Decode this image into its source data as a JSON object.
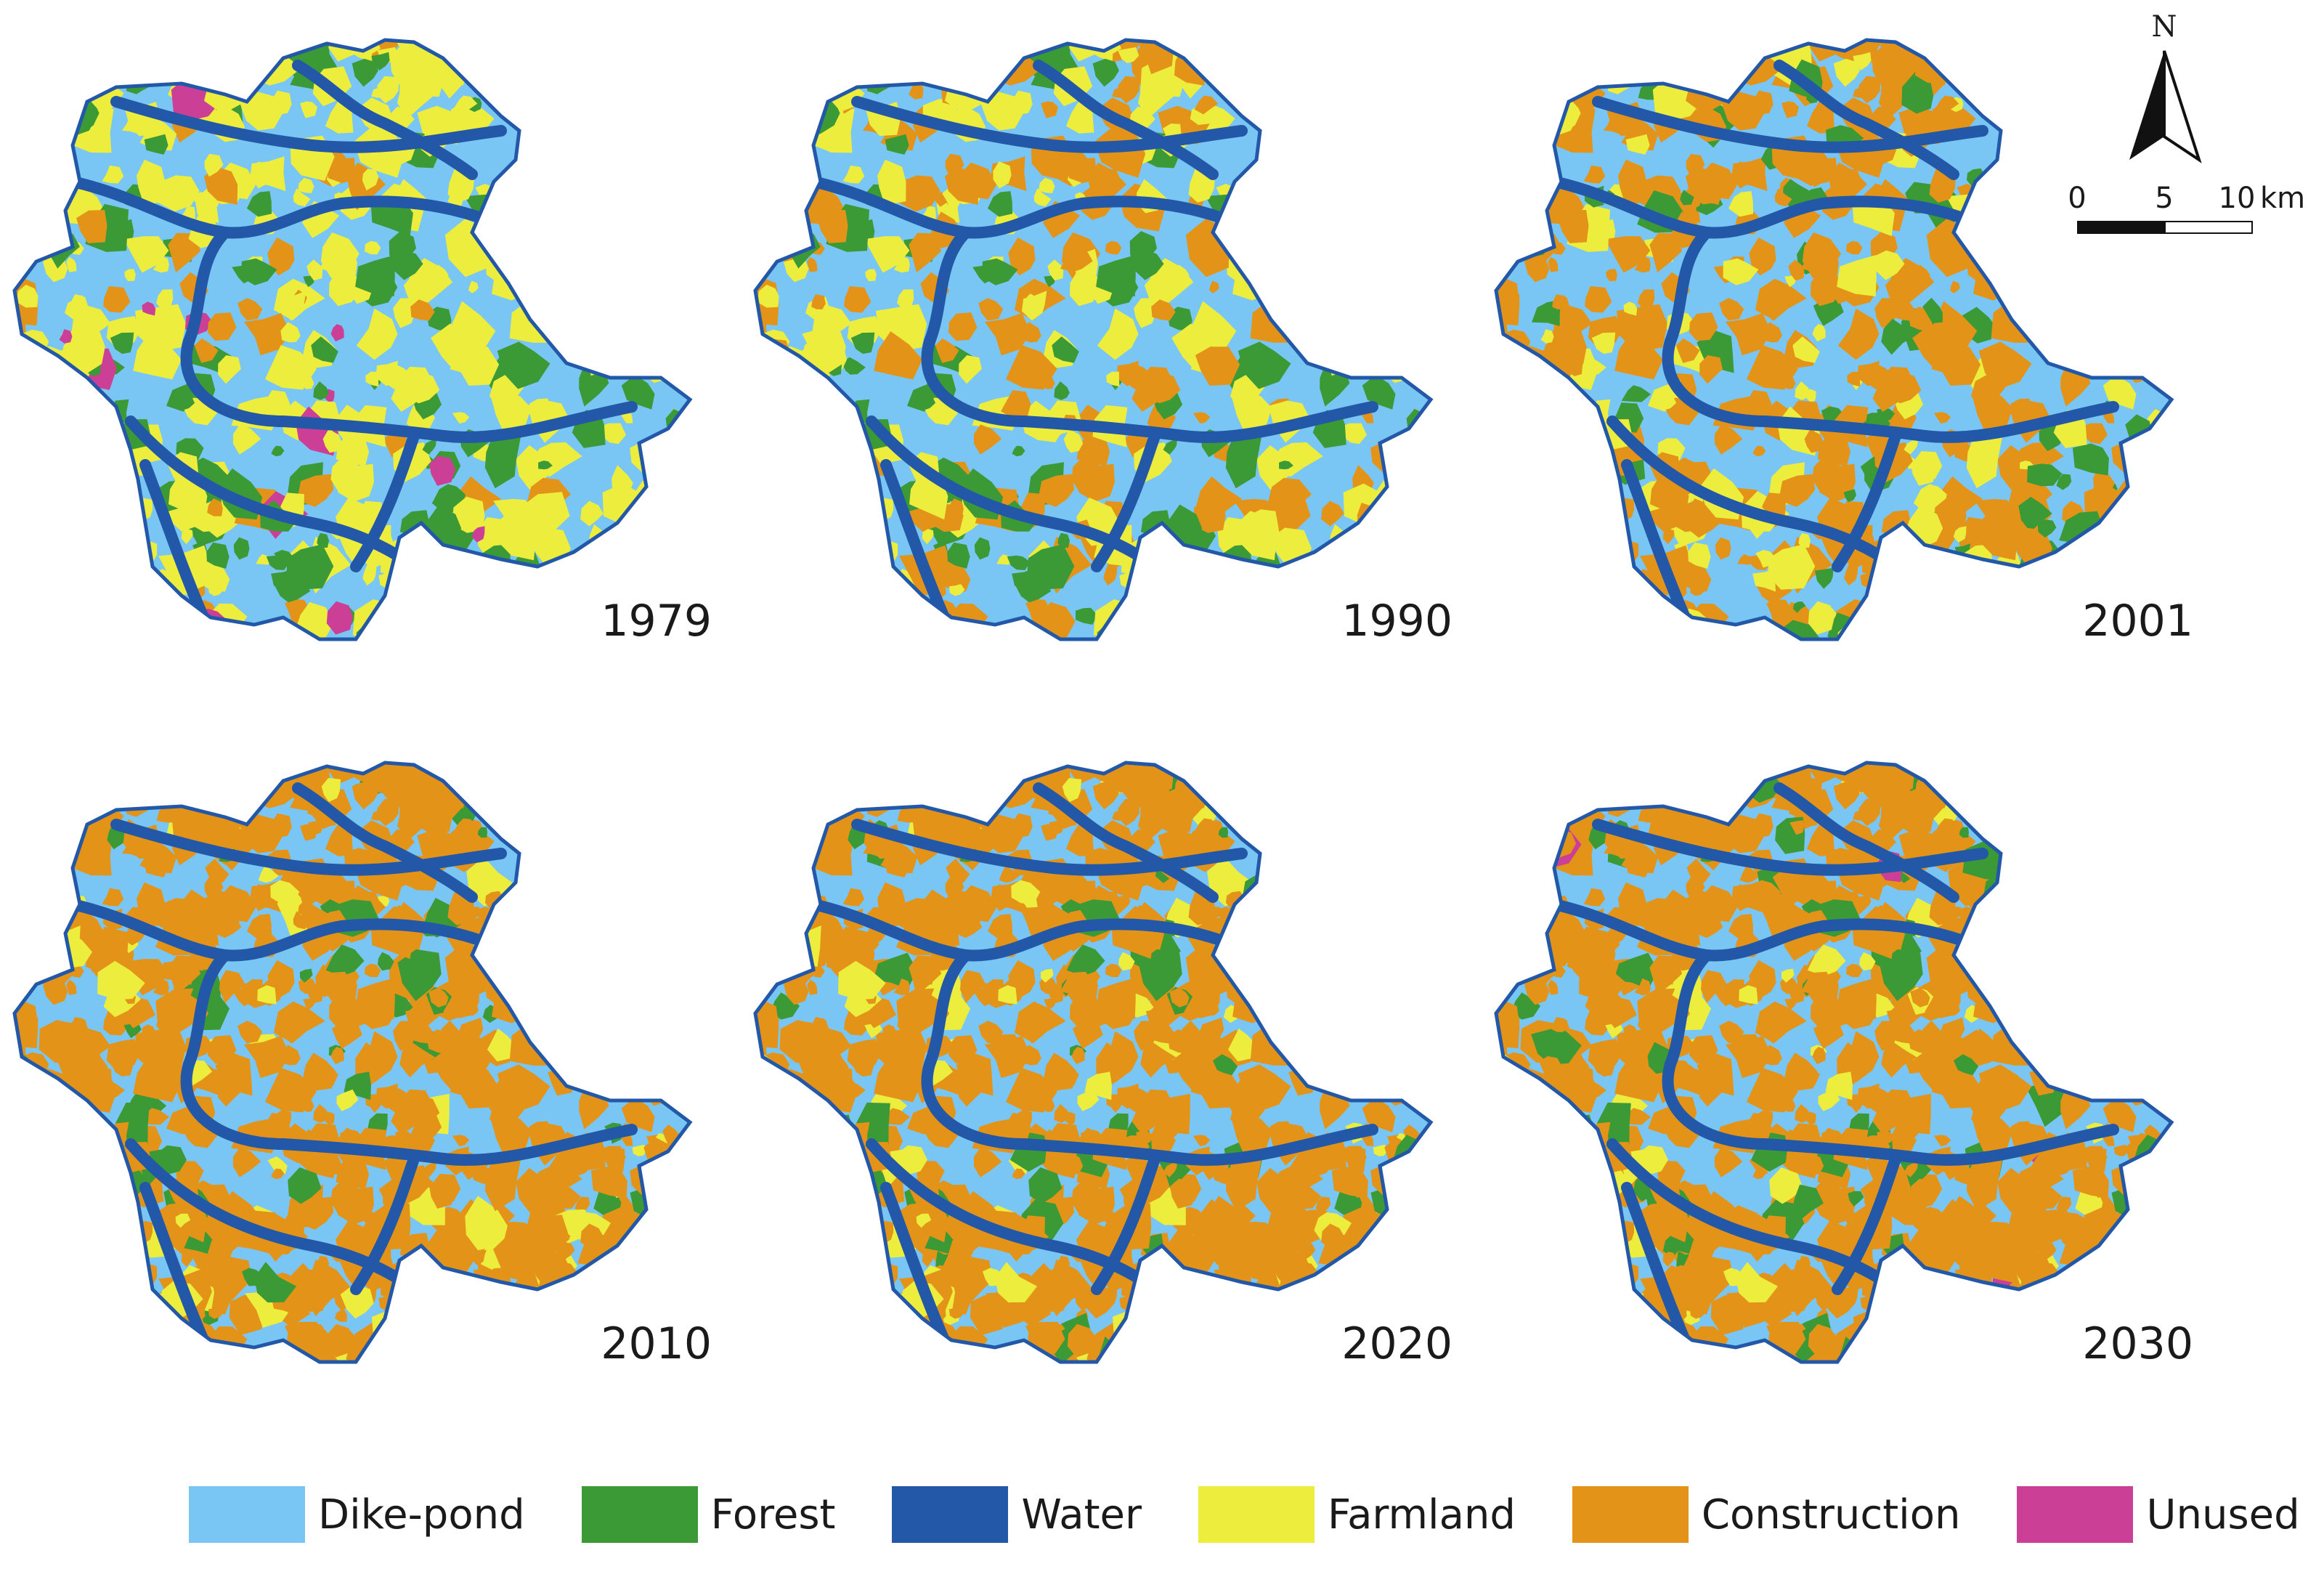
{
  "panels": [
    {
      "year": "1979",
      "composition": {
        "Dike-pond": 0.52,
        "Forest": 0.1,
        "Water": 0.1,
        "Farmland": 0.24,
        "Construction": 0.03,
        "Unused": 0.01
      }
    },
    {
      "year": "1990",
      "composition": {
        "Dike-pond": 0.55,
        "Forest": 0.08,
        "Water": 0.1,
        "Farmland": 0.14,
        "Construction": 0.13,
        "Unused": 0.0
      }
    },
    {
      "year": "2001",
      "composition": {
        "Dike-pond": 0.46,
        "Forest": 0.06,
        "Water": 0.1,
        "Farmland": 0.08,
        "Construction": 0.3,
        "Unused": 0.0
      }
    },
    {
      "year": "2010",
      "composition": {
        "Dike-pond": 0.3,
        "Forest": 0.05,
        "Water": 0.1,
        "Farmland": 0.05,
        "Construction": 0.5,
        "Unused": 0.0
      }
    },
    {
      "year": "2020",
      "composition": {
        "Dike-pond": 0.28,
        "Forest": 0.05,
        "Water": 0.1,
        "Farmland": 0.05,
        "Construction": 0.52,
        "Unused": 0.0
      }
    },
    {
      "year": "2030",
      "composition": {
        "Dike-pond": 0.26,
        "Forest": 0.05,
        "Water": 0.1,
        "Farmland": 0.04,
        "Construction": 0.54,
        "Unused": 0.01
      }
    }
  ],
  "north_arrow": {
    "label": "N"
  },
  "scale_bar": {
    "ticks": [
      "0",
      "5",
      "10"
    ],
    "unit": "km"
  },
  "legend": [
    {
      "label": "Dike-pond",
      "color": "#79c6f4"
    },
    {
      "label": "Forest",
      "color": "#3b9a35"
    },
    {
      "label": "Water",
      "color": "#2358a8"
    },
    {
      "label": "Farmland",
      "color": "#eded3d"
    },
    {
      "label": "Construction",
      "color": "#e39418"
    },
    {
      "label": "Unused",
      "color": "#cc3f96"
    }
  ]
}
